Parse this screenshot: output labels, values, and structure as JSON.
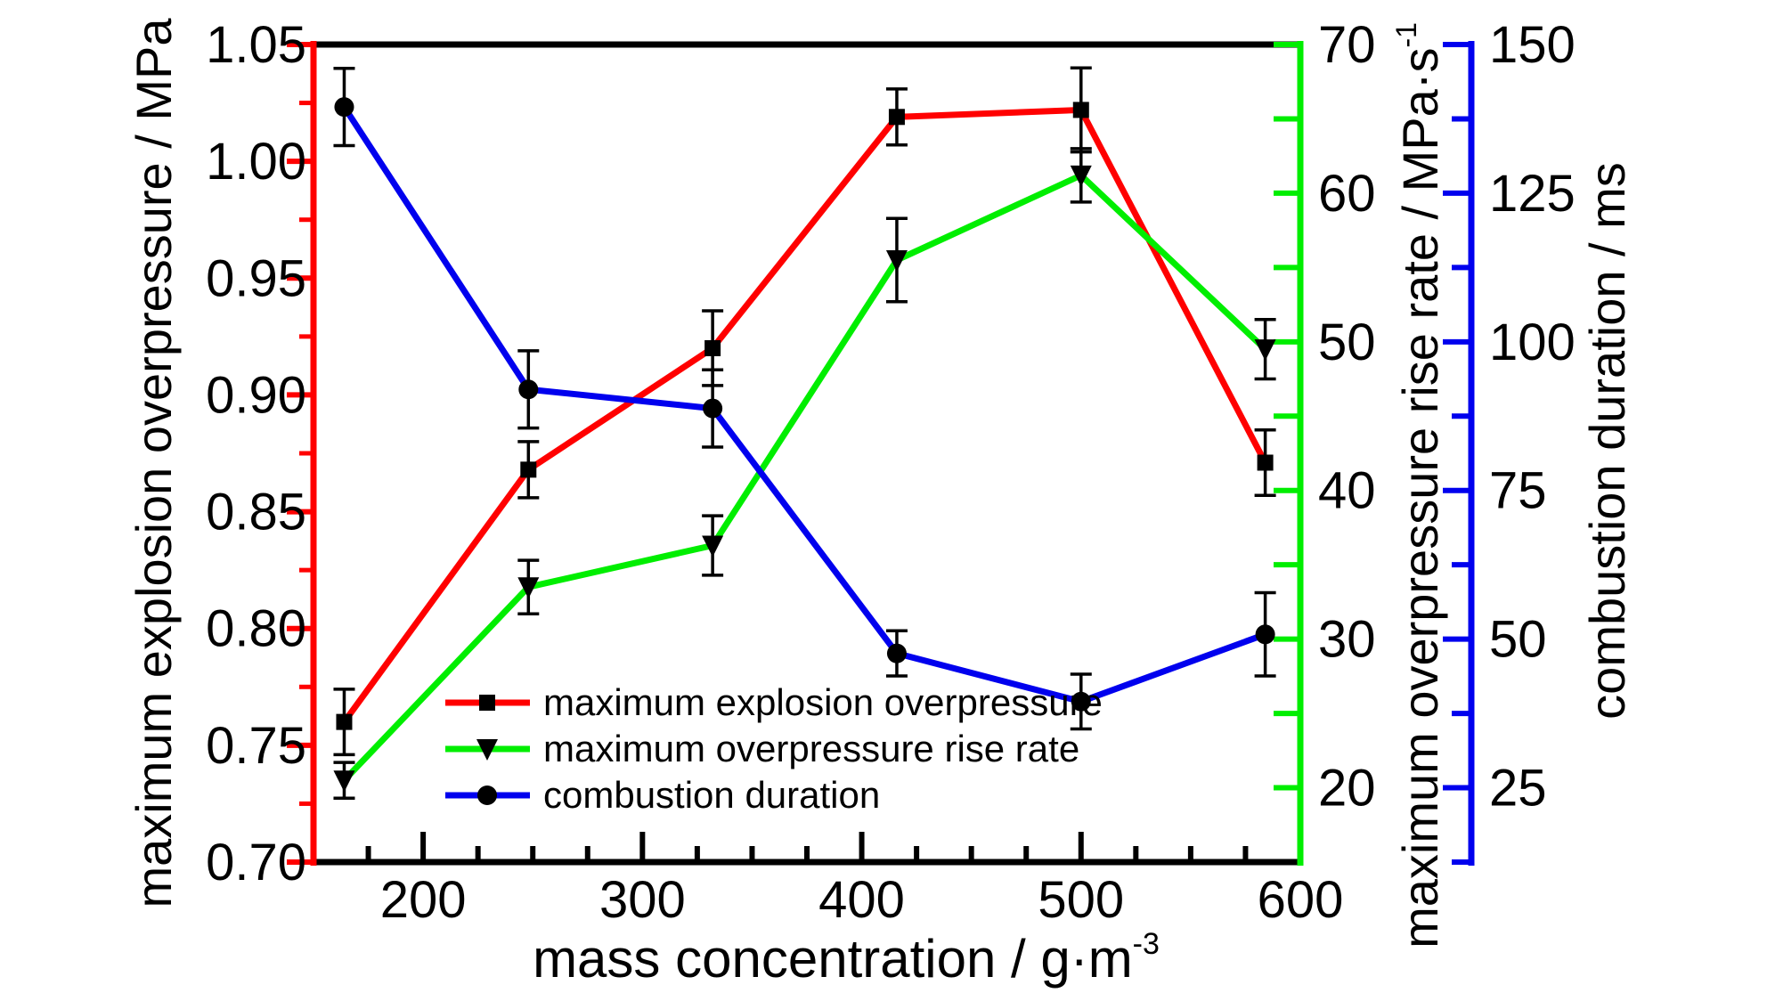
{
  "chart_data": {
    "type": "line",
    "x": [
      164,
      248,
      332,
      416,
      500,
      584
    ],
    "xlabel": "mass concentration / g·m",
    "xlabel_sup": "-3",
    "xlim": [
      150,
      600
    ],
    "xticks": [
      200,
      300,
      400,
      500,
      600
    ],
    "grid": false,
    "legend_position": "bottom-center",
    "axes": {
      "left": {
        "label": "maximum explosion overpressure / MPa",
        "range": [
          0.7,
          1.05
        ],
        "ticks": [
          "0.70",
          "0.75",
          "0.80",
          "0.85",
          "0.90",
          "0.95",
          "1.00",
          "1.05"
        ],
        "color": "#ff0000"
      },
      "right1": {
        "label": "maximum overpressure rise rate / MPa·s",
        "label_sup": "-1",
        "range": [
          15,
          70
        ],
        "ticks": [
          "20",
          "30",
          "40",
          "50",
          "60",
          "70"
        ],
        "color": "#00ee00"
      },
      "right2": {
        "label": "combustion duration / ms",
        "range": [
          12.5,
          150
        ],
        "ticks": [
          "25",
          "50",
          "75",
          "100",
          "125",
          "150"
        ],
        "color": "#0000ee"
      }
    },
    "series": [
      {
        "name": "maximum explosion overpressure",
        "axis": "left",
        "color": "#ff0000",
        "marker": "square",
        "values": [
          0.76,
          0.868,
          0.92,
          1.019,
          1.022,
          0.871
        ],
        "errors": [
          0.014,
          0.012,
          0.016,
          0.012,
          0.018,
          0.014
        ]
      },
      {
        "name": "maximum overpressure rise rate",
        "axis": "right1",
        "color": "#00ee00",
        "marker": "triangle-down",
        "values": [
          20.5,
          33.5,
          36.3,
          55.5,
          61.2,
          49.5
        ],
        "errors": [
          1.2,
          1.8,
          2.0,
          2.8,
          1.8,
          2.0
        ]
      },
      {
        "name": "combustion duration",
        "axis": "right2",
        "color": "#0000ee",
        "marker": "circle",
        "values": [
          139.5,
          92.0,
          88.8,
          47.6,
          39.5,
          50.8
        ],
        "errors": [
          6.5,
          6.5,
          6.5,
          3.8,
          4.6,
          7.0
        ]
      }
    ]
  }
}
